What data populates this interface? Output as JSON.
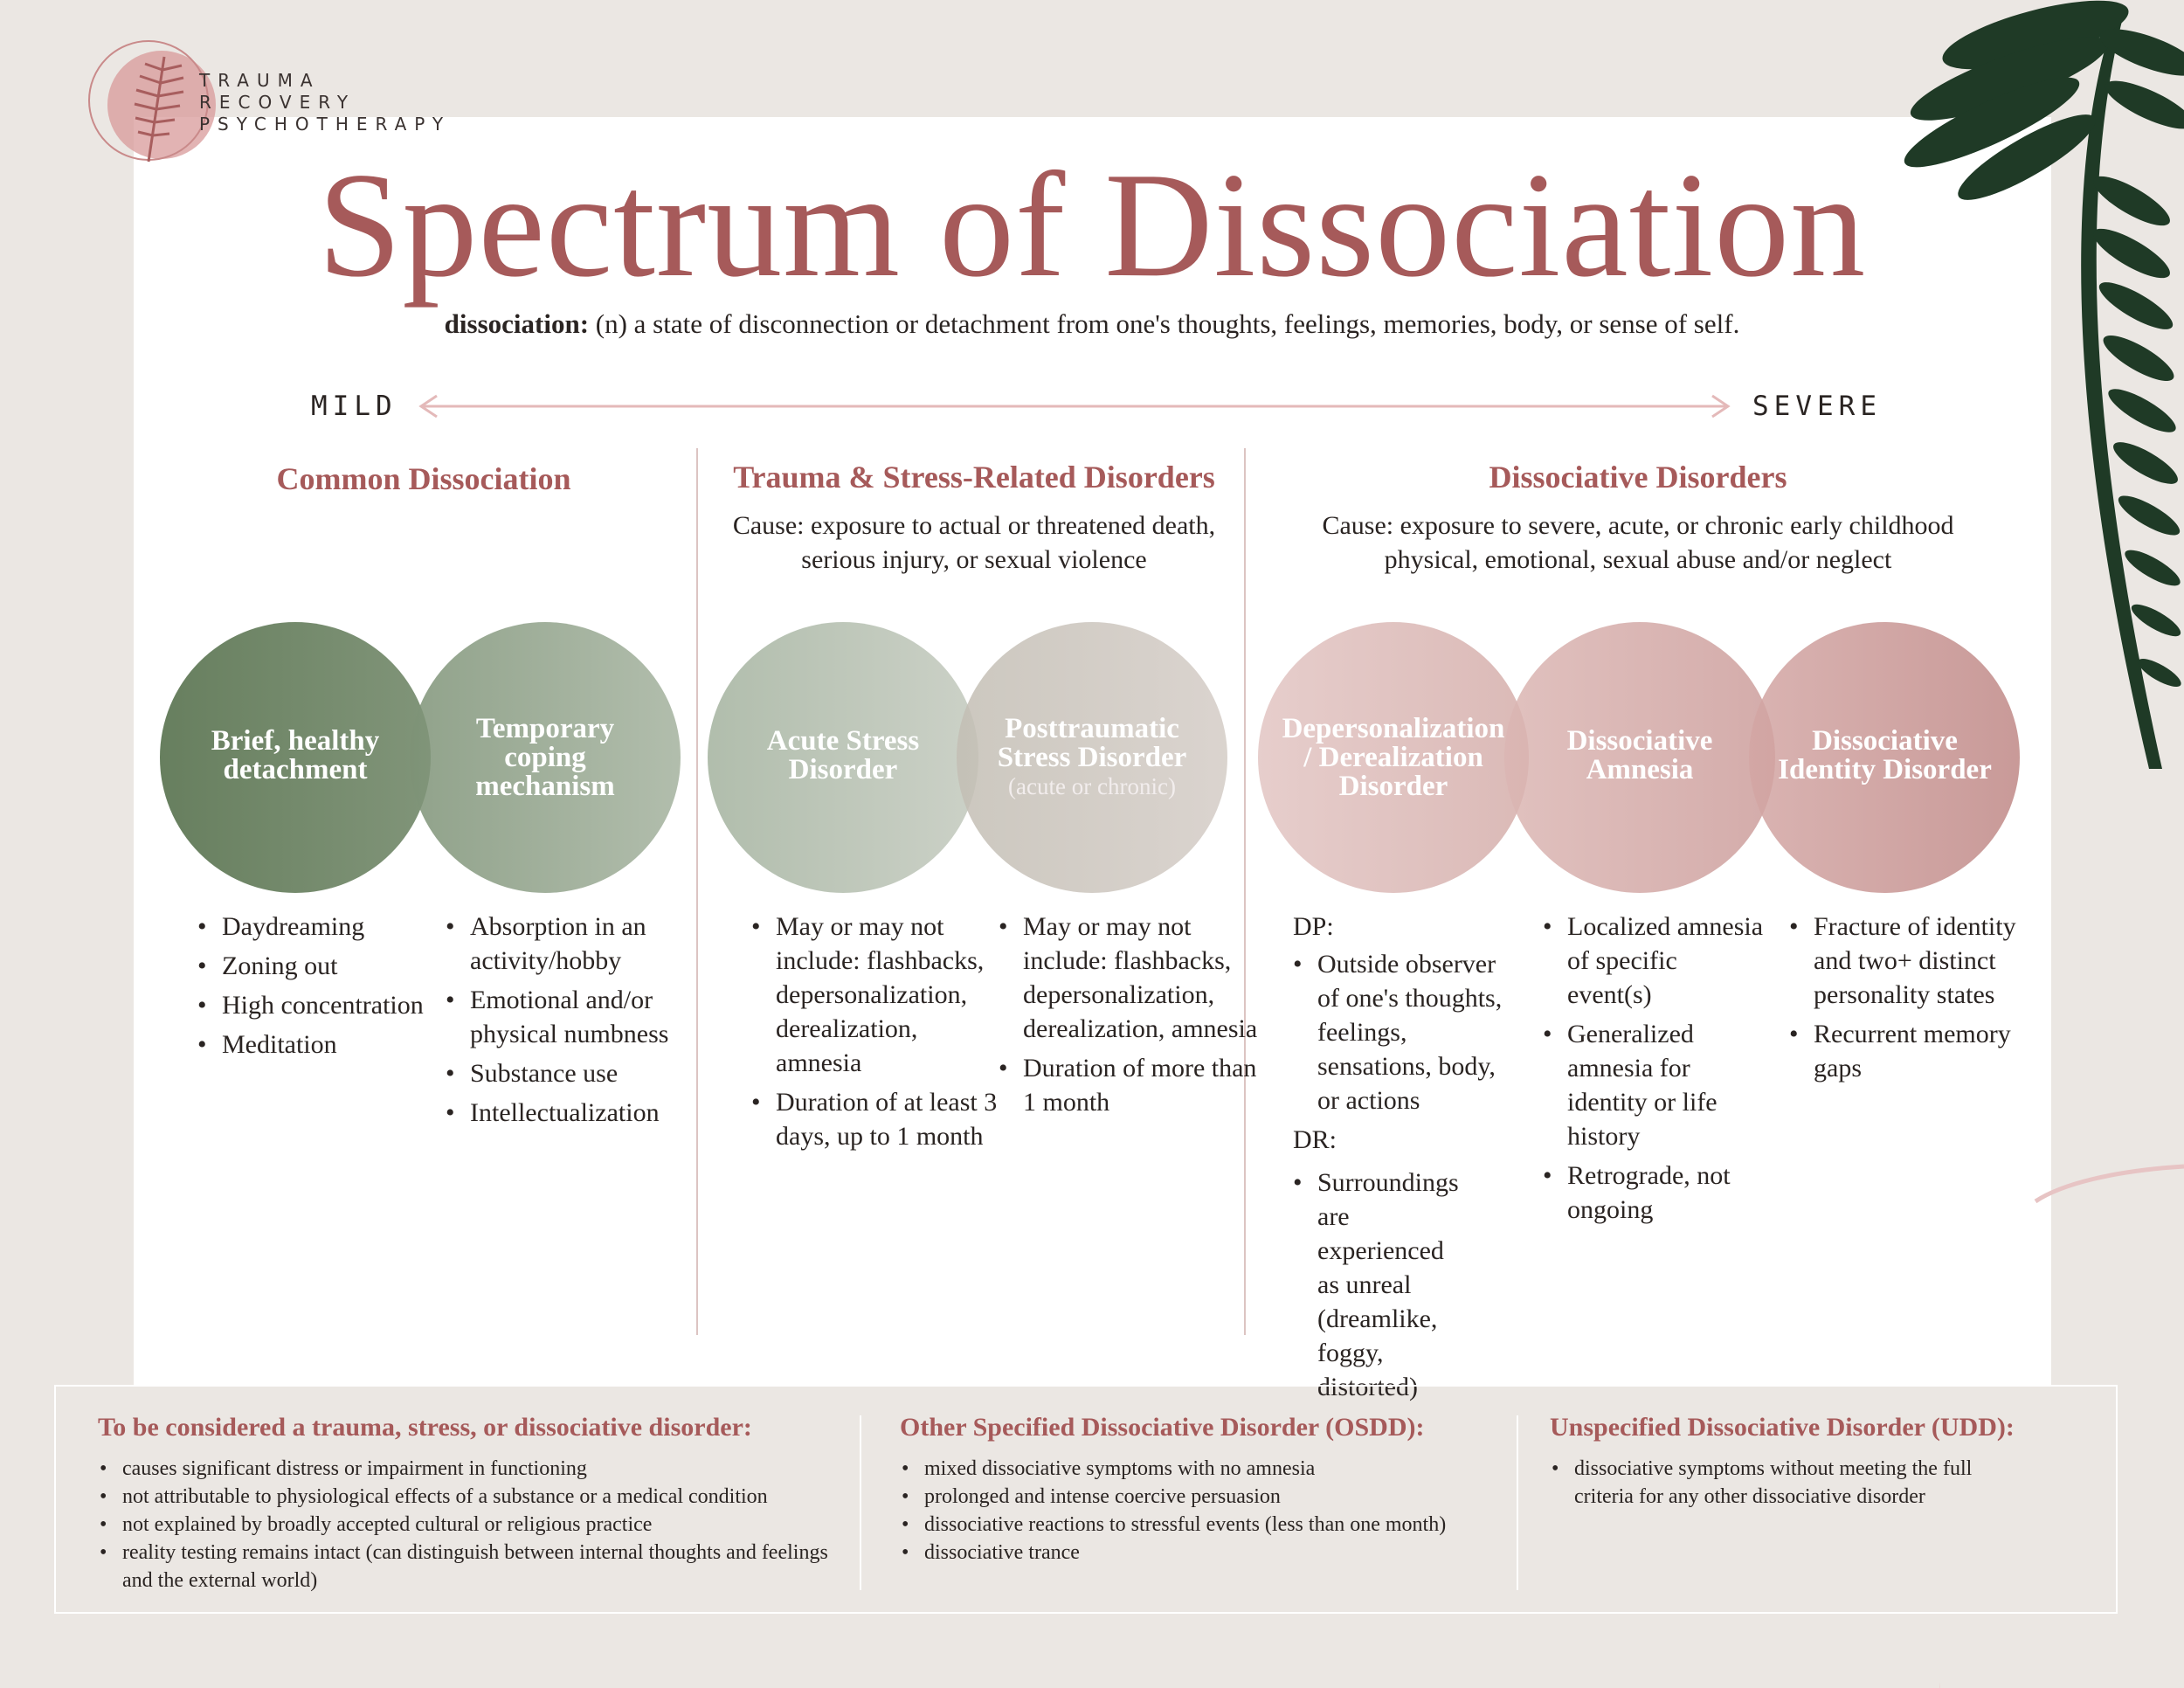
{
  "logo": {
    "lines": [
      "TRAUMA",
      "RECOVERY",
      "PSYCHOTHERAPY"
    ]
  },
  "title": "Spectrum of Dissociation",
  "definition": {
    "term": "dissociation:",
    "text": "(n) a state of disconnection or detachment from one's thoughts, feelings, memories, body, or sense of self."
  },
  "scale": {
    "left": "MILD",
    "right": "SEVERE"
  },
  "columns": [
    {
      "heading": "Common Dissociation",
      "cause": ""
    },
    {
      "heading": "Trauma & Stress-Related Disorders",
      "cause": "Cause: exposure to actual or threatened death, serious injury, or sexual violence"
    },
    {
      "heading": "Dissociative Disorders",
      "cause": "Cause: exposure to severe, acute, or chronic early childhood physical, emotional, sexual abuse and/or neglect"
    }
  ],
  "circles": [
    {
      "label": "Brief, healthy detachment",
      "sub": ""
    },
    {
      "label": "Temporary coping mechanism",
      "sub": ""
    },
    {
      "label": "Acute Stress Disorder",
      "sub": ""
    },
    {
      "label": "Posttraumatic Stress Disorder",
      "sub": "(acute or chronic)"
    },
    {
      "label": "Depersonalization / Derealization Disorder",
      "sub": ""
    },
    {
      "label": "Dissociative Amnesia",
      "sub": ""
    },
    {
      "label": "Dissociative Identity Disorder",
      "sub": ""
    }
  ],
  "colors": {
    "accent": "#a65a5a",
    "circle_fills": [
      "#6a8160",
      "#8ca08a",
      "#b7c2b2",
      "#cbc4bd",
      "#dfc0bd",
      "#d4a8a6",
      "#c99593"
    ]
  },
  "lists": {
    "brief": [
      "Daydreaming",
      "Zoning out",
      "High concentration",
      "Meditation"
    ],
    "temporary": [
      "Absorption in an activity/hobby",
      "Emotional and/or physical numbness",
      "Substance use",
      "Intellectualization"
    ],
    "acute": [
      "May or may not include: flashbacks, depersonalization, derealization, amnesia",
      "Duration of at least 3 days, up to 1 month"
    ],
    "ptsd": [
      "May or may not include: flashbacks, depersonalization, derealization, amnesia",
      "Duration of more than 1 month"
    ],
    "dpdr": {
      "dp_label": "DP:",
      "dp_items": [
        "Outside observer of one's thoughts, feelings, sensations, body, or actions"
      ],
      "dr_label": "DR:",
      "dr_items": [
        "Surroundings are experienced as unreal (dreamlike, foggy, distorted)"
      ]
    },
    "amnesia": [
      "Localized amnesia of specific event(s)",
      "Generalized amnesia for identity or life history",
      "Retrograde, not ongoing"
    ],
    "did": [
      "Fracture of identity and two+ distinct personality states",
      "Recurrent memory gaps"
    ]
  },
  "bottom": [
    {
      "heading": "To be considered a trauma, stress, or dissociative disorder:",
      "items": [
        "causes significant distress or impairment in functioning",
        "not attributable to physiological effects of a substance or a medical condition",
        "not explained by broadly accepted cultural or religious practice",
        "reality testing remains intact (can distinguish between internal thoughts and feelings and the external world)"
      ]
    },
    {
      "heading": "Other Specified Dissociative Disorder (OSDD):",
      "items": [
        "mixed dissociative symptoms with no amnesia",
        "prolonged and intense coercive persuasion",
        "dissociative reactions to stressful events (less than one month)",
        "dissociative trance"
      ]
    },
    {
      "heading": "Unspecified Dissociative Disorder (UDD):",
      "items": [
        "dissociative symptoms without meeting the full criteria for any other dissociative disorder"
      ]
    }
  ]
}
